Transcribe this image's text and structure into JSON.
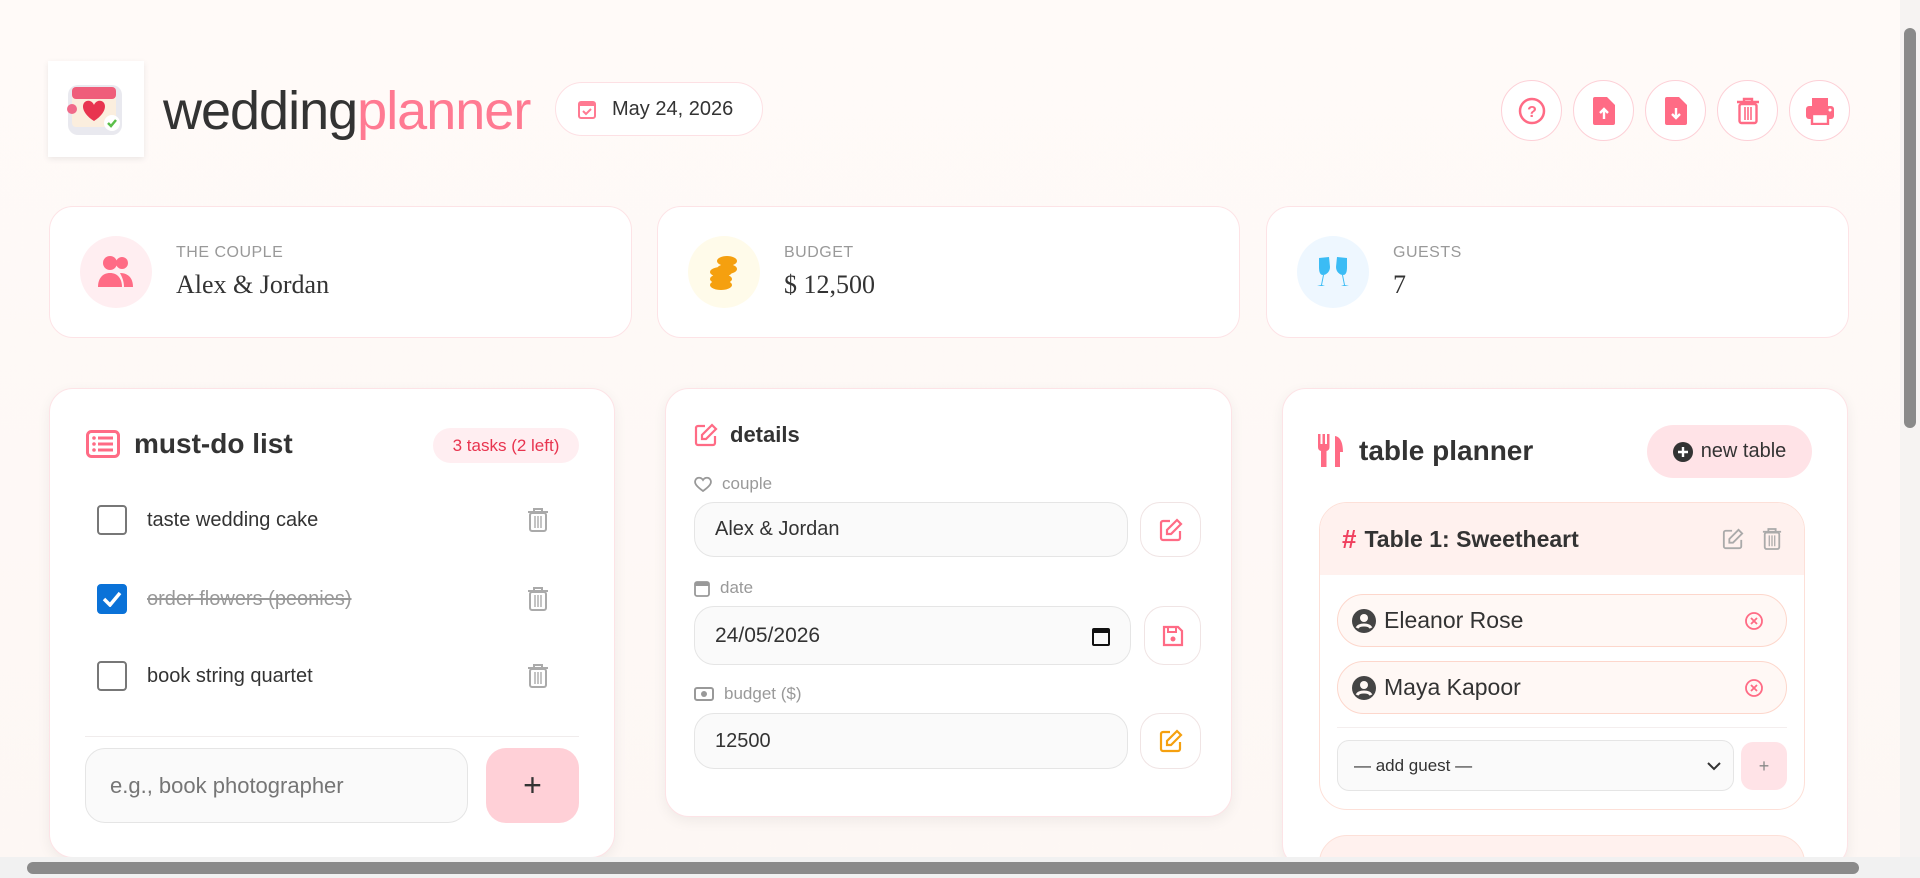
{
  "header": {
    "brand_part1": "wedding",
    "brand_part2": "planner",
    "date": "May 24, 2026",
    "actions": [
      {
        "icon": "help-icon"
      },
      {
        "icon": "file-upload-icon"
      },
      {
        "icon": "file-download-icon"
      },
      {
        "icon": "trash-icon"
      },
      {
        "icon": "print-icon"
      }
    ]
  },
  "stats": [
    {
      "label": "THE COUPLE",
      "value": "Alex & Jordan",
      "icon": "users-icon"
    },
    {
      "label": "BUDGET",
      "value": "$ 12,500",
      "icon": "coins-icon"
    },
    {
      "label": "GUESTS",
      "value": "7",
      "icon": "champagne-glasses-icon"
    }
  ],
  "todo": {
    "title": "must-do list",
    "badge": "3 tasks (2 left)",
    "tasks": [
      {
        "text": "taste wedding cake",
        "done": false
      },
      {
        "text": "order flowers (peonies)",
        "done": true
      },
      {
        "text": "book string quartet",
        "done": false
      }
    ],
    "placeholder": "e.g., book photographer",
    "add_label": "+"
  },
  "details": {
    "title": "details",
    "couple_label": "couple",
    "couple_value": "Alex & Jordan",
    "date_label": "date",
    "date_value": "24/05/2026",
    "budget_label": "budget ($)",
    "budget_value": "12500"
  },
  "tables": {
    "title": "table planner",
    "new_label": "new table",
    "list": [
      {
        "name": "Table 1: Sweetheart",
        "guests": [
          "Eleanor Rose",
          "Maya Kapoor"
        ],
        "select_placeholder": "— add guest —",
        "add_label": "+"
      }
    ]
  },
  "colors": {
    "accent": "#ff7a92",
    "gold": "#f5a00f",
    "sky": "#3bbcf5"
  }
}
